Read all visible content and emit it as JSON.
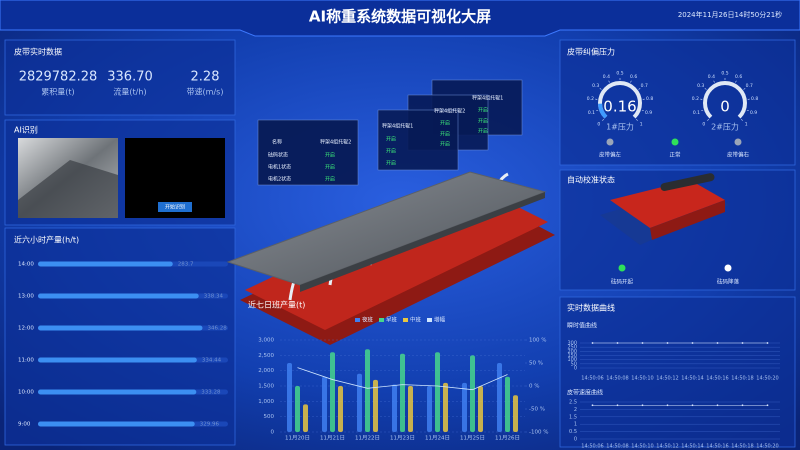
{
  "header": {
    "title": "AI称重系统数据可视化大屏",
    "datetime": "2024年11月26日14时50分21秒"
  },
  "belt_data": {
    "title": "皮带实时数据",
    "items": [
      {
        "value": "2829782.28",
        "label": "累积量(t)"
      },
      {
        "value": "336.70",
        "label": "流量(t/h)"
      },
      {
        "value": "2.28",
        "label": "带速(m/s)"
      }
    ]
  },
  "ai_recognition": {
    "title": "AI识别",
    "button": "开始识别"
  },
  "equipment_panels": [
    {
      "header": [
        "名称",
        "秤架4组托辊2"
      ],
      "rows": [
        [
          "砝码状态",
          "开启"
        ],
        [
          "电机1状态",
          "开启"
        ],
        [
          "电机2状态",
          "开启"
        ]
      ]
    },
    {
      "header": "秤架4组托辊1",
      "rows": [
        "开启",
        "开启",
        "开启"
      ]
    },
    {
      "header": "秤架4组托辊2",
      "rows": [
        "开启",
        "开启",
        "开启"
      ]
    },
    {
      "header": "秤架4组托辊1",
      "rows": [
        "开启",
        "开启",
        "开启"
      ]
    }
  ],
  "deviation": {
    "title": "皮带纠偏压力",
    "gauge_range": [
      0,
      1
    ],
    "gauge_ticks": [
      0,
      0.1,
      0.2,
      0.3,
      0.4,
      0.5,
      0.6,
      0.7,
      0.8,
      0.9,
      1
    ],
    "gauges": [
      {
        "value": 0.16,
        "label": "1#压力",
        "color": "#3f9bff"
      },
      {
        "value": 0,
        "label": "2#压力",
        "color": "#ff8a3a"
      }
    ],
    "status": [
      {
        "label": "皮带偏左",
        "color": "#9aa5b8"
      },
      {
        "label": "正常",
        "color": "#2fe05a"
      },
      {
        "label": "皮带偏右",
        "color": "#9aa5b8"
      }
    ]
  },
  "calibration": {
    "title": "自动校准状态",
    "status": [
      {
        "label": "砝码开起",
        "color": "#2fe05a"
      },
      {
        "label": "砝码降落",
        "color": "#ffffff"
      }
    ]
  },
  "realtime": {
    "title": "实时数据曲线"
  },
  "chart_data": [
    {
      "type": "hbar",
      "title": "近六小时产量(h/t)",
      "categories": [
        "14:00",
        "13:00",
        "12:00",
        "11:00",
        "10:00",
        "9:00"
      ],
      "values": [
        283.7,
        338.34,
        346.28,
        334.44,
        333.28,
        329.96
      ],
      "xlim": [
        0,
        400
      ],
      "color": "#3c8ff2"
    },
    {
      "type": "combo",
      "title": "近七日班产量(t)",
      "categories": [
        "11月20日",
        "11月21日",
        "11月22日",
        "11月23日",
        "11月24日",
        "11月25日",
        "11月26日"
      ],
      "series": [
        {
          "name": "夜班",
          "color": "#3f7ff0",
          "values": [
            2250,
            1800,
            1900,
            1550,
            1500,
            1600,
            2250
          ]
        },
        {
          "name": "早班",
          "color": "#47d68c",
          "values": [
            1500,
            2600,
            2700,
            2550,
            2600,
            2500,
            1800
          ]
        },
        {
          "name": "中班",
          "color": "#e8c640",
          "values": [
            900,
            1500,
            1700,
            1500,
            1600,
            1500,
            1200
          ]
        },
        {
          "name": "增幅",
          "type": "line",
          "axis": "y2",
          "color": "#cfe6ff",
          "values": [
            40,
            14,
            -5,
            3,
            0,
            -8,
            25
          ]
        }
      ],
      "ylim": [
        0,
        3000
      ],
      "yticks": [
        0,
        500,
        {
          "value": 1000,
          "label": "1,000"
        },
        {
          "value": 1500,
          "label": "1,500"
        },
        {
          "value": 2000,
          "label": "2,000"
        },
        {
          "value": 2500,
          "label": "2,500"
        },
        {
          "value": 3000,
          "label": "3,000"
        }
      ],
      "y2lim": [
        -100,
        100
      ],
      "y2ticks": [
        {
          "value": -100,
          "label": "-100 %"
        },
        {
          "value": -50,
          "label": "-50 %"
        },
        {
          "value": 0,
          "label": "0 %"
        },
        {
          "value": 50,
          "label": "50 %"
        },
        {
          "value": 100,
          "label": "100 %"
        }
      ]
    },
    {
      "type": "line",
      "title": "瞬时值曲线",
      "categories": [
        "14:50:06",
        "14:50:08",
        "14:50:10",
        "14:50:12",
        "14:50:14",
        "14:50:16",
        "14:50:18",
        "14:50:20"
      ],
      "values": [
        300,
        300,
        300,
        300,
        300,
        300,
        300,
        300
      ],
      "ylim": [
        0,
        300
      ],
      "yticks": [
        0,
        50,
        100,
        150,
        200,
        250,
        300
      ],
      "color": "#dbe8ff"
    },
    {
      "type": "line",
      "title": "皮带速度曲线",
      "categories": [
        "14:50:06",
        "14:50:08",
        "14:50:10",
        "14:50:12",
        "14:50:14",
        "14:50:16",
        "14:50:18",
        "14:50:20"
      ],
      "values": [
        2.28,
        2.28,
        2.28,
        2.28,
        2.28,
        2.28,
        2.28,
        2.28
      ],
      "ylim": [
        0,
        2.5
      ],
      "yticks": [
        0,
        0.5,
        1,
        1.5,
        2,
        2.5
      ],
      "color": "#dbe8ff"
    }
  ]
}
